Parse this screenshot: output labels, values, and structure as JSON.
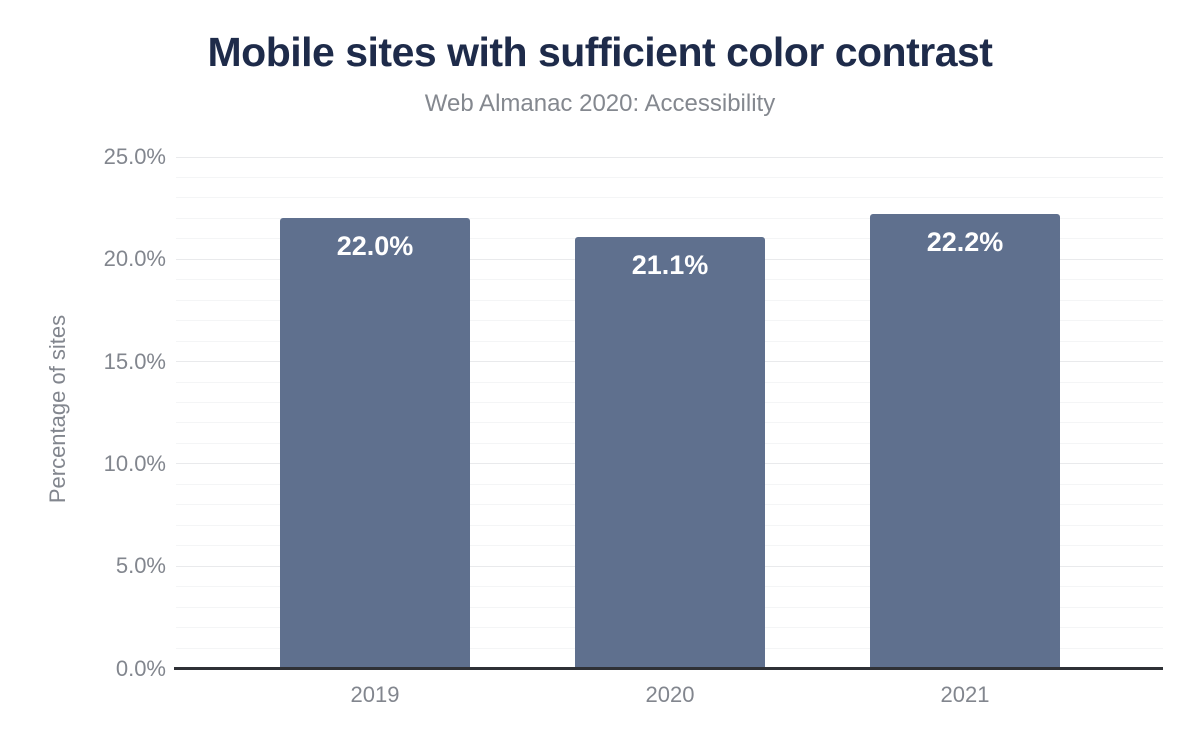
{
  "chart_data": {
    "type": "bar",
    "title": "Mobile sites with sufficient color contrast",
    "subtitle": "Web Almanac 2020: Accessibility",
    "categories": [
      "2019",
      "2020",
      "2021"
    ],
    "values": [
      22.0,
      21.1,
      22.2
    ],
    "bar_value_labels": [
      "22.0%",
      "21.1%",
      "22.2%"
    ],
    "xlabel": "",
    "ylabel": "Percentage of sites",
    "ylim": [
      0,
      25
    ],
    "ytick_labels": [
      "0.0%",
      "5.0%",
      "10.0%",
      "15.0%",
      "20.0%",
      "25.0%"
    ],
    "ytick_major_step": 5,
    "ytick_minor_step": 1,
    "grid": "on",
    "legend": "none",
    "colors": {
      "bar": "#5f708e",
      "title": "#1e2b4a",
      "subtitle": "#84888f",
      "tick_label": "#82868e",
      "axis_label": "#82868e",
      "axis_line": "#2f3136",
      "grid_major": "#e9eaec",
      "grid_minor": "#f4f5f6",
      "bar_value_label": "#ffffff",
      "background": "#ffffff"
    }
  }
}
